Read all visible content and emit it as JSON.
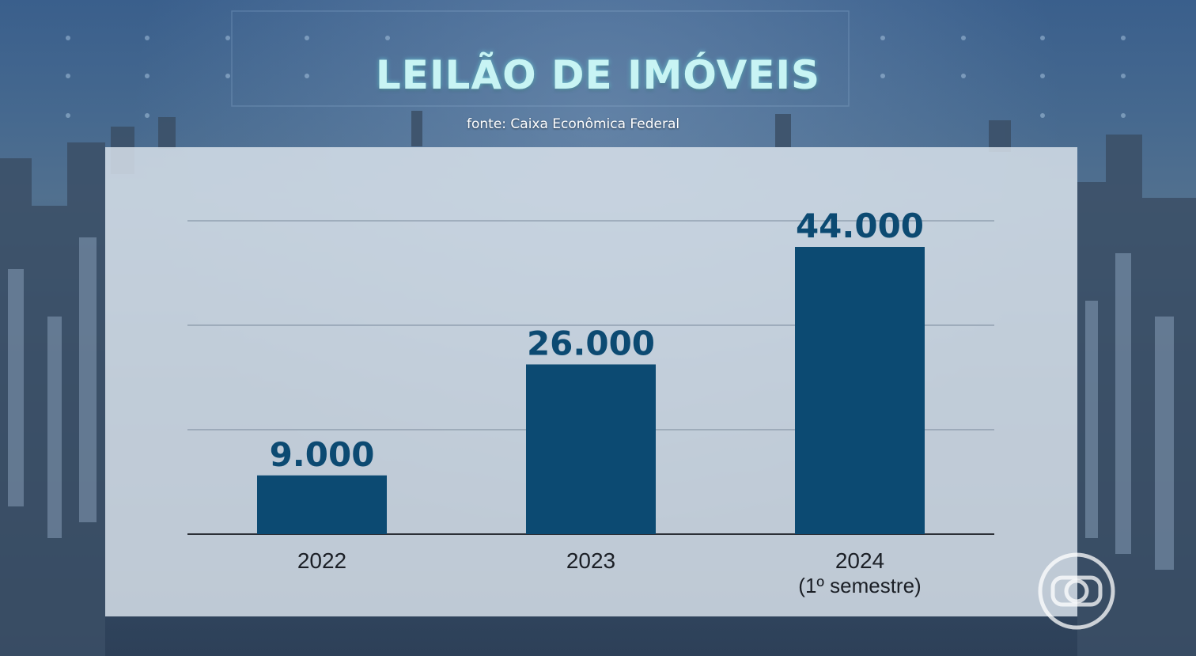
{
  "title": "LEILÃO DE IMÓVEIS",
  "source": "fonte: Caixa Econômica Federal",
  "colors": {
    "bar": "#0c4a72",
    "value_label": "#0c4a72",
    "title": "#c8f4f4",
    "panel": "#d6dfe9",
    "gridline": "#7a8a9c"
  },
  "logo": {
    "icon": "globo-logo-icon"
  },
  "chart_data": {
    "type": "bar",
    "categories": [
      "2022",
      "2023",
      "2024"
    ],
    "category_sublabels": [
      "",
      "",
      "(1º semestre)"
    ],
    "values": [
      9000,
      26000,
      44000
    ],
    "value_labels": [
      "9.000",
      "26.000",
      "44.000"
    ],
    "title": "LEILÃO DE IMÓVEIS",
    "xlabel": "",
    "ylabel": "",
    "ylim": [
      0,
      48000
    ],
    "grid": true,
    "gridlines": [
      16000,
      32000,
      48000
    ],
    "legend": "none"
  }
}
